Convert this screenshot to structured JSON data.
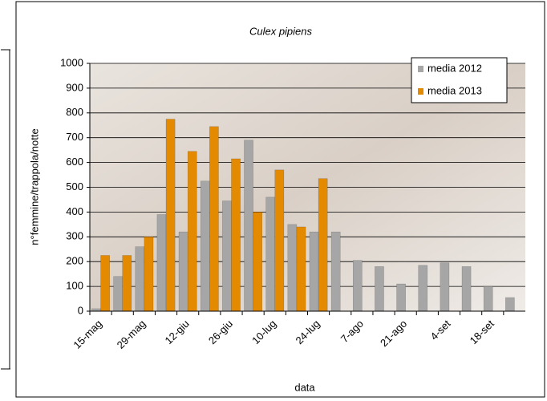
{
  "chart_data": {
    "type": "bar",
    "title": "Culex pipiens",
    "x_label": "data",
    "y_label": "n°femmine/trappola/notte",
    "categories": [
      "15-mag",
      null,
      "29-mag",
      null,
      "12-giu",
      null,
      "26-giu",
      null,
      "10-lug",
      null,
      "24-lug",
      null,
      "7-ago",
      null,
      "21-ago",
      null,
      "4-set",
      null,
      "18-set",
      null
    ],
    "series": [
      {
        "name": "media 2012",
        "color": "#a6a6a6",
        "values": [
          10,
          140,
          260,
          390,
          320,
          525,
          445,
          690,
          460,
          350,
          320,
          320,
          205,
          180,
          110,
          185,
          195,
          180,
          100,
          55
        ]
      },
      {
        "name": "media 2013",
        "color": "#e38a00",
        "values": [
          225,
          225,
          300,
          775,
          645,
          745,
          615,
          400,
          570,
          340,
          535,
          null,
          null,
          null,
          null,
          null,
          null,
          null,
          null,
          null
        ]
      }
    ],
    "ylim": [
      0,
      1000
    ],
    "yticks": [
      0,
      100,
      200,
      300,
      400,
      500,
      600,
      700,
      800,
      900,
      1000
    ],
    "grid": true,
    "legend": "top-right"
  }
}
